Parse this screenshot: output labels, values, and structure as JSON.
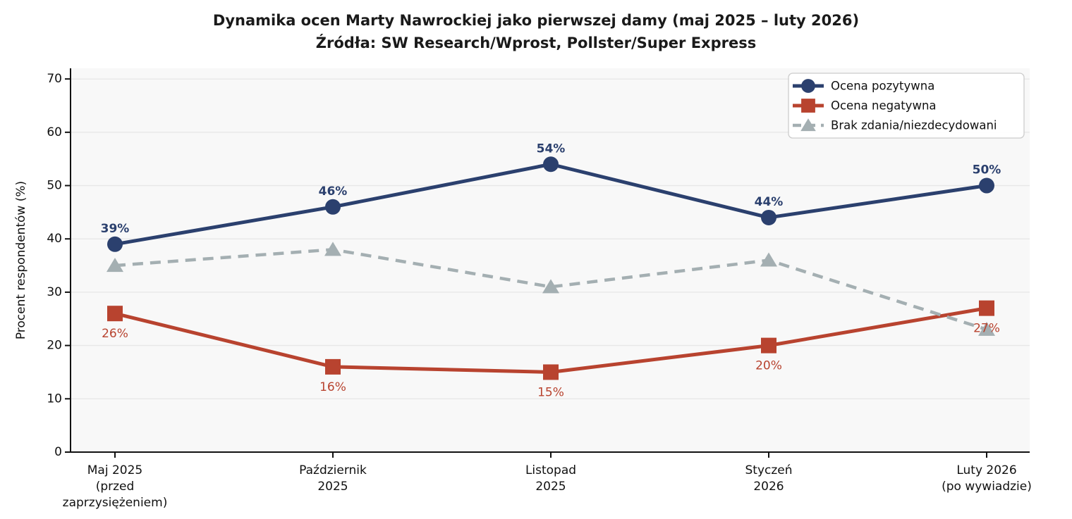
{
  "title": "Dynamika ocen Marty Nawrockiej jako pierwszej damy (maj 2025 – luty 2026)",
  "subtitle": "Źródła: SW Research/Wprost, Pollster/Super Express",
  "chart_data": {
    "type": "line",
    "title": "Dynamika ocen Marty Nawrockiej jako pierwszej damy (maj 2025 – luty 2026)",
    "subtitle": "Źródła: SW Research/Wprost, Pollster/Super Express",
    "categories": [
      [
        "Maj 2025",
        "(przed",
        "zaprzysiężeniem)"
      ],
      [
        "Październik",
        "2025"
      ],
      [
        "Listopad",
        "2025"
      ],
      [
        "Styczeń",
        "2026"
      ],
      [
        "Luty 2026",
        "(po wywiadzie)"
      ]
    ],
    "series": [
      {
        "name": "Ocena pozytywna",
        "color": "#2b406e",
        "marker": "circle",
        "line": "solid",
        "values": [
          39,
          46,
          54,
          44,
          50
        ],
        "labels": [
          "39%",
          "46%",
          "54%",
          "44%",
          "50%"
        ],
        "label_position": "above",
        "label_weight": "bold"
      },
      {
        "name": "Ocena negatywna",
        "color": "#b8432f",
        "marker": "square",
        "line": "solid",
        "values": [
          26,
          16,
          15,
          20,
          27
        ],
        "labels": [
          "26%",
          "16%",
          "15%",
          "20%",
          "27%"
        ],
        "label_position": "below",
        "label_weight": "normal"
      },
      {
        "name": "Brak zdania/niezdecydowani",
        "color": "#a4afb2",
        "marker": "triangle",
        "line": "dashed",
        "values": [
          35,
          38,
          31,
          36,
          23
        ],
        "labels": null,
        "label_position": null,
        "label_weight": null
      }
    ],
    "xlabel": "",
    "ylabel": "Procent respondentów (%)",
    "ylim": [
      0,
      72
    ],
    "yticks": [
      0,
      10,
      20,
      30,
      40,
      50,
      60,
      70
    ],
    "grid": true,
    "legend_position": "upper right",
    "plot_bg": "#f8f8f8",
    "grid_color": "#e7e7e7",
    "axis_color": "#111111",
    "tick_label_color": "#111111"
  }
}
